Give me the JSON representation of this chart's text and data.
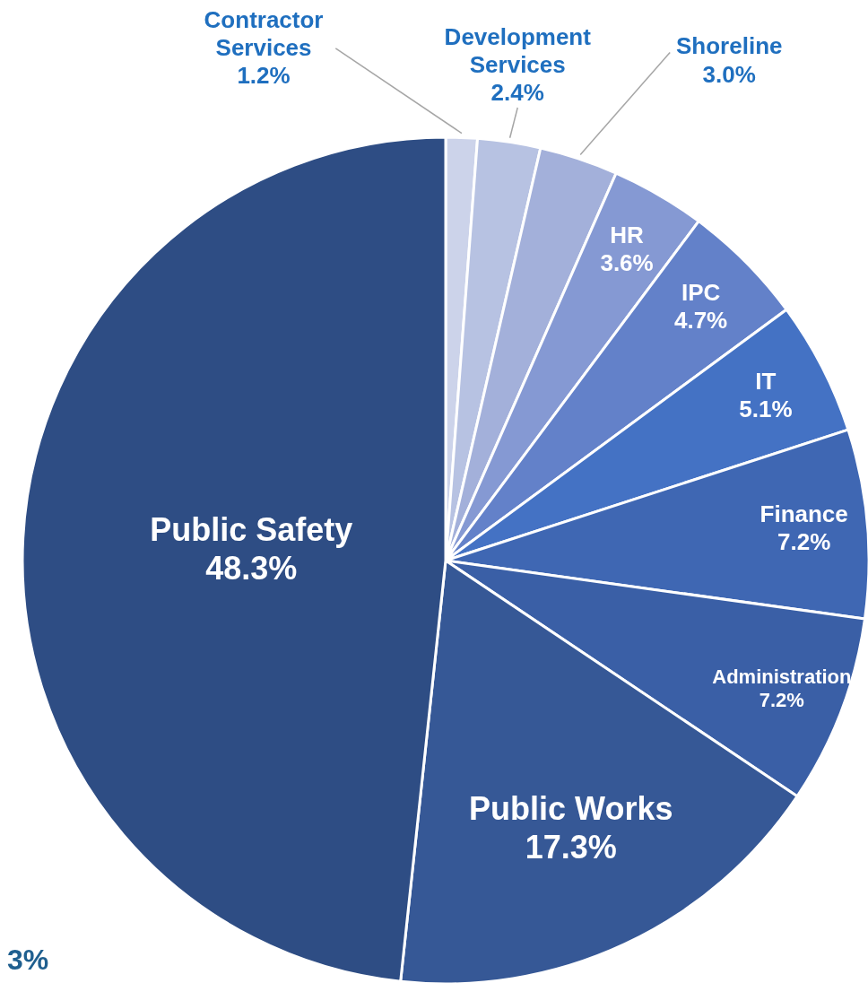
{
  "chart_data": {
    "type": "pie",
    "categories": [
      "Contractor Services",
      "Development Services",
      "Shoreline",
      "HR",
      "IPC",
      "IT",
      "Finance",
      "Administration",
      "Public Works",
      "Public Safety"
    ],
    "values": [
      1.2,
      2.4,
      3.0,
      3.6,
      4.7,
      5.1,
      7.2,
      7.2,
      17.3,
      48.3
    ],
    "value_labels": [
      "1.2%",
      "2.4%",
      "3.0%",
      "3.6%",
      "4.7%",
      "5.1%",
      "7.2%",
      "7.2%",
      "17.3%",
      "48.3%"
    ],
    "colors": [
      "#ccd3ea",
      "#b7c2e2",
      "#a3b0da",
      "#8599d3",
      "#6381c9",
      "#4472c4",
      "#3f67b3",
      "#3a5fa6",
      "#365896",
      "#2e4d84"
    ],
    "annotations": [
      "3%"
    ]
  }
}
